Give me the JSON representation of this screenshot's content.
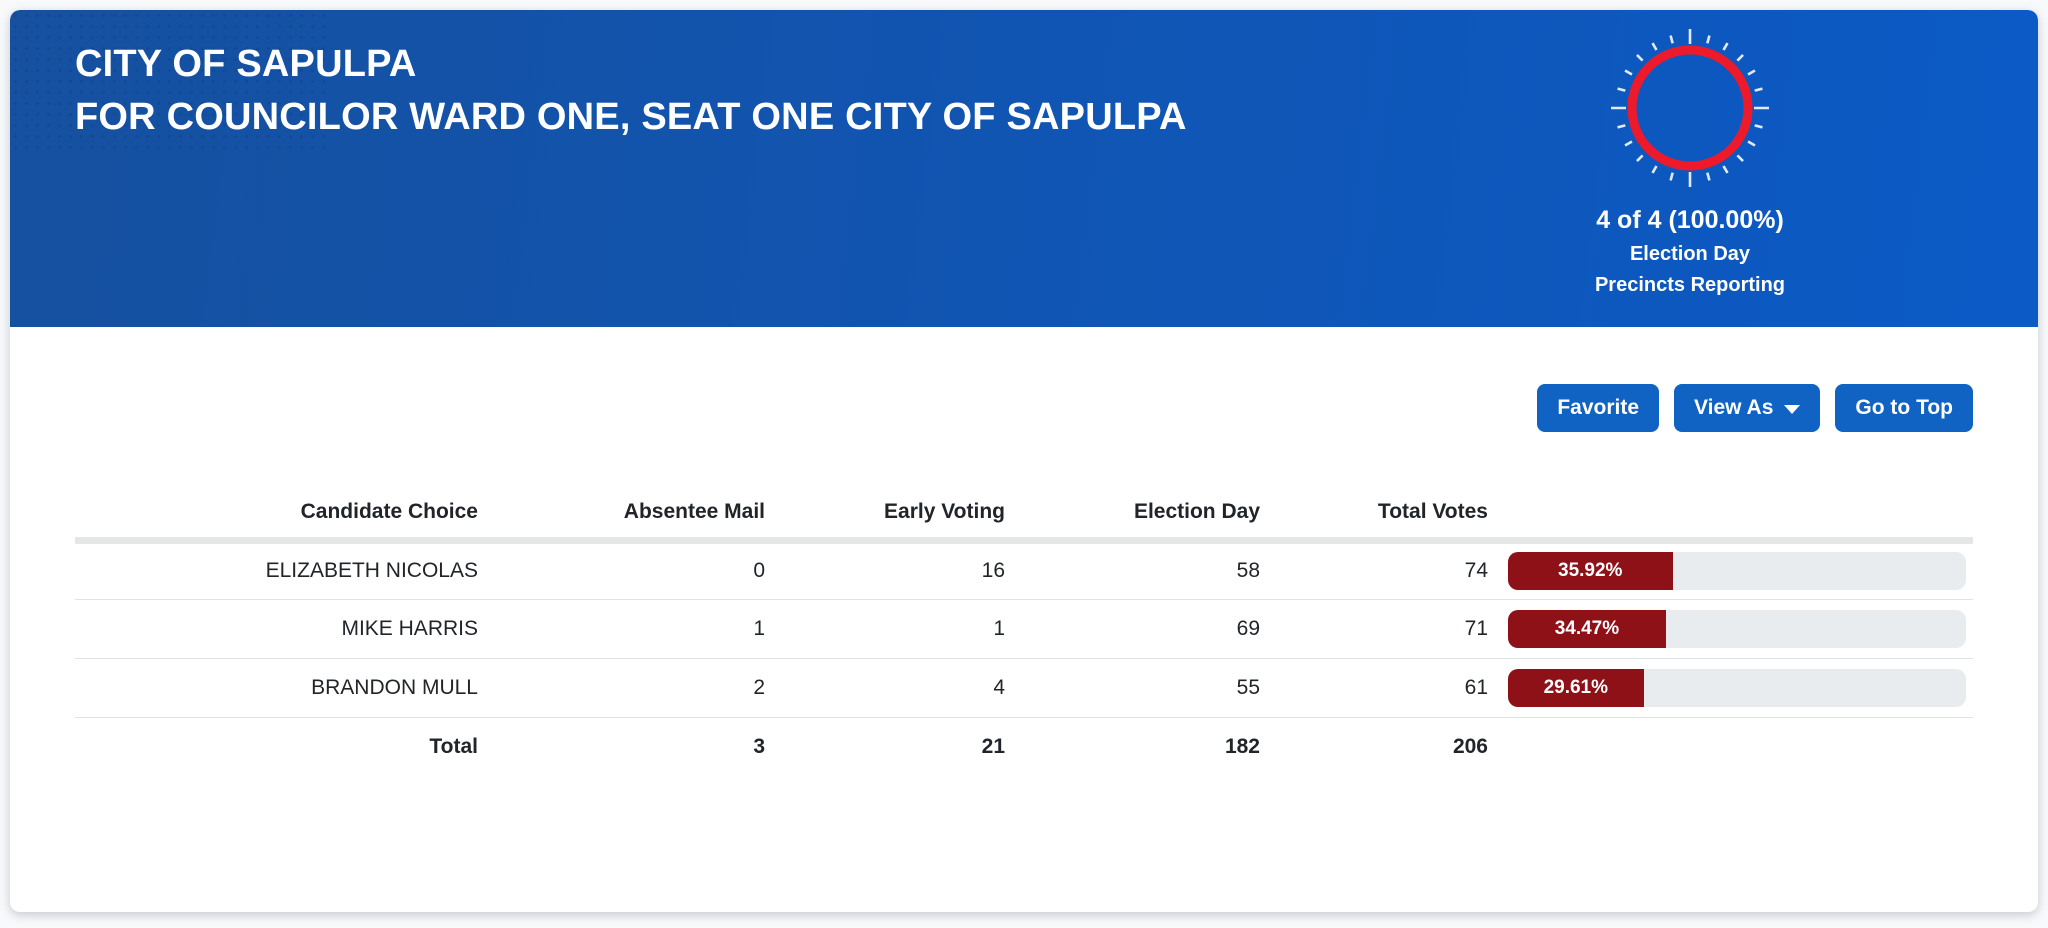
{
  "theme": {
    "banner_left": "#16509f",
    "banner_right": "#0b5ac6",
    "button_blue": "#1063c2",
    "bar_fill": "#8e1118",
    "bar_track": "#e9ecef",
    "ring_red": "#ed1a2b",
    "text_dark": "#212529"
  },
  "header": {
    "entity_title": "CITY OF SAPULPA",
    "race_title": "FOR COUNCILOR WARD ONE, SEAT ONE CITY OF SAPULPA",
    "gauge": {
      "count_label": "4 of 4 (100.00%)",
      "sub_line1": "Election Day",
      "sub_line2": "Precincts Reporting",
      "percent_reported": 100
    }
  },
  "toolbar": {
    "favorite_label": "Favorite",
    "view_as_label": "View As",
    "go_to_top_label": "Go to Top"
  },
  "icons": {
    "view_as_caret": "caret-down",
    "precincts_gauge": "circular-progress-ring"
  },
  "results_table": {
    "columns": {
      "candidate": "Candidate Choice",
      "absentee_mail": "Absentee Mail",
      "early_voting": "Early Voting",
      "election_day": "Election Day",
      "total_votes": "Total Votes"
    },
    "rows": [
      {
        "candidate": "ELIZABETH NICOLAS",
        "absentee_mail": "0",
        "early_voting": "16",
        "election_day": "58",
        "total_votes": "74",
        "percent_label": "35.92%",
        "percent_value": 35.92
      },
      {
        "candidate": "MIKE HARRIS",
        "absentee_mail": "1",
        "early_voting": "1",
        "election_day": "69",
        "total_votes": "71",
        "percent_label": "34.47%",
        "percent_value": 34.47
      },
      {
        "candidate": "BRANDON MULL",
        "absentee_mail": "2",
        "early_voting": "4",
        "election_day": "55",
        "total_votes": "61",
        "percent_label": "29.61%",
        "percent_value": 29.61
      }
    ],
    "total_row": {
      "label": "Total",
      "absentee_mail": "3",
      "early_voting": "21",
      "election_day": "182",
      "total_votes": "206"
    }
  }
}
